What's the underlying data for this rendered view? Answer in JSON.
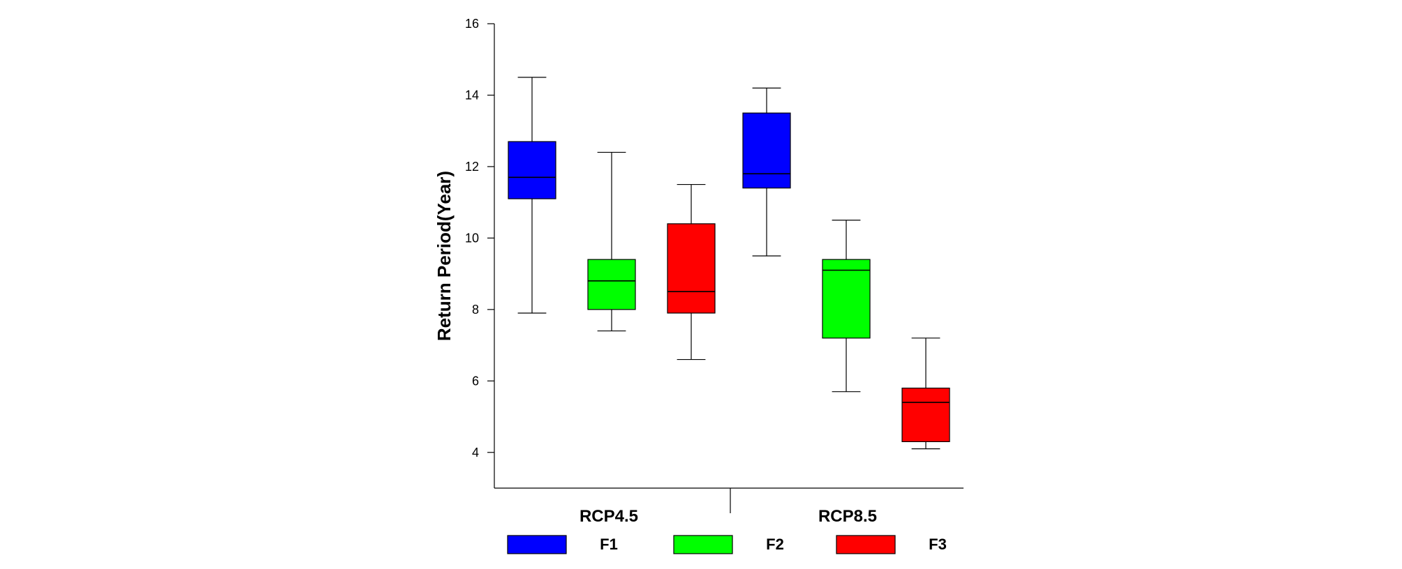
{
  "chart_data": {
    "type": "box",
    "ylabel": "Return Period(Year)",
    "xlabel": "",
    "ylim": [
      3,
      16
    ],
    "yticks": [
      4,
      6,
      8,
      10,
      12,
      14,
      16
    ],
    "groups": [
      "RCP4.5",
      "RCP8.5"
    ],
    "series": [
      {
        "name": "F1",
        "color": "#0000ff",
        "boxes": [
          {
            "group": "RCP4.5",
            "min": 7.9,
            "q1": 11.1,
            "median": 11.7,
            "q3": 12.7,
            "max": 14.5
          },
          {
            "group": "RCP8.5",
            "min": 9.5,
            "q1": 11.4,
            "median": 11.8,
            "q3": 13.5,
            "max": 14.2
          }
        ]
      },
      {
        "name": "F2",
        "color": "#00ff00",
        "boxes": [
          {
            "group": "RCP4.5",
            "min": 7.4,
            "q1": 8.0,
            "median": 8.8,
            "q3": 9.4,
            "max": 12.4
          },
          {
            "group": "RCP8.5",
            "min": 5.7,
            "q1": 7.2,
            "median": 9.1,
            "q3": 9.4,
            "max": 10.5
          }
        ]
      },
      {
        "name": "F3",
        "color": "#ff0000",
        "boxes": [
          {
            "group": "RCP4.5",
            "min": 6.6,
            "q1": 7.9,
            "median": 8.5,
            "q3": 10.4,
            "max": 11.5
          },
          {
            "group": "RCP8.5",
            "min": 4.1,
            "q1": 4.3,
            "median": 5.4,
            "q3": 5.8,
            "max": 7.2
          }
        ]
      }
    ],
    "grid": false,
    "legend_position": "bottom"
  }
}
